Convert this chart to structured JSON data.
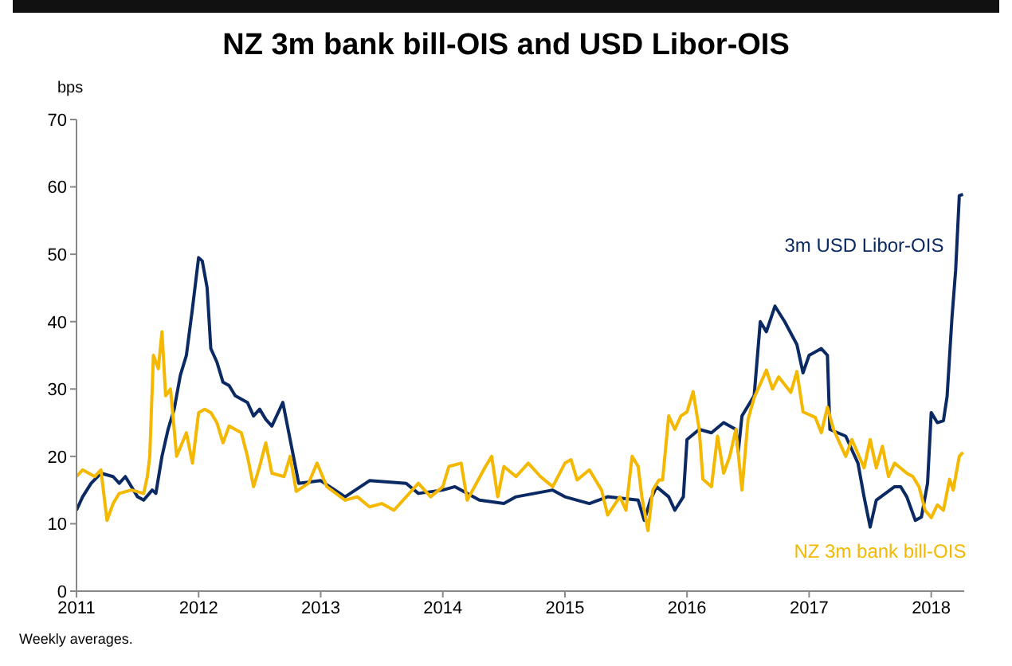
{
  "chart_data": {
    "type": "line",
    "title": "NZ 3m bank bill-OIS and USD Libor-OIS",
    "ylabel": "bps",
    "annotations": [
      "Weekly averages."
    ],
    "xlim": [
      2011,
      2018.27
    ],
    "xticks": [
      2011,
      2012,
      2013,
      2014,
      2015,
      2016,
      2017,
      2018
    ],
    "ylim": [
      0,
      70
    ],
    "yticks": [
      0,
      10,
      20,
      30,
      40,
      50,
      60,
      70
    ],
    "grid": false,
    "legend": false,
    "marker": "none",
    "line_style": "solid",
    "series": [
      {
        "name": "3m USD Libor-OIS",
        "color": "#0b2a63",
        "x": [
          2011.0,
          2011.05,
          2011.12,
          2011.2,
          2011.3,
          2011.35,
          2011.4,
          2011.5,
          2011.55,
          2011.62,
          2011.65,
          2011.7,
          2011.75,
          2011.8,
          2011.85,
          2011.9,
          2011.95,
          2012.0,
          2012.03,
          2012.07,
          2012.1,
          2012.15,
          2012.2,
          2012.25,
          2012.3,
          2012.4,
          2012.45,
          2012.5,
          2012.55,
          2012.6,
          2012.69,
          2012.82,
          2013.0,
          2013.2,
          2013.4,
          2013.7,
          2013.8,
          2014.0,
          2014.1,
          2014.3,
          2014.5,
          2014.6,
          2014.9,
          2015.0,
          2015.2,
          2015.35,
          2015.6,
          2015.65,
          2015.7,
          2015.75,
          2015.85,
          2015.9,
          2015.97,
          2016.0,
          2016.1,
          2016.2,
          2016.3,
          2016.4,
          2016.42,
          2016.45,
          2016.55,
          2016.6,
          2016.65,
          2016.72,
          2016.8,
          2016.9,
          2016.95,
          2017.0,
          2017.1,
          2017.15,
          2017.17,
          2017.3,
          2017.4,
          2017.45,
          2017.5,
          2017.55,
          2017.7,
          2017.75,
          2017.8,
          2017.87,
          2017.92,
          2017.97,
          2018.0,
          2018.05,
          2018.1,
          2018.13,
          2018.17,
          2018.2,
          2018.23,
          2018.26
        ],
        "values": [
          12,
          14,
          16,
          17.5,
          17,
          16,
          17,
          14,
          13.5,
          15,
          14.5,
          20,
          24,
          27,
          32,
          35,
          42,
          49.5,
          49,
          45,
          36,
          34,
          31,
          30.5,
          29,
          28,
          26,
          27,
          25.5,
          24.5,
          28,
          16,
          16.4,
          14,
          16.4,
          16,
          14.5,
          15,
          15.5,
          13.5,
          13,
          14,
          15,
          14,
          13,
          14,
          13.5,
          10.5,
          13.5,
          15.5,
          14,
          12,
          14,
          22.5,
          24,
          23.5,
          25,
          24,
          20.7,
          26,
          29,
          40,
          38.5,
          42.3,
          40,
          36.6,
          32.4,
          35,
          36,
          35,
          24,
          23,
          19,
          14,
          9.5,
          13.5,
          15.5,
          15.5,
          14,
          10.5,
          11,
          16,
          26.5,
          25,
          25.3,
          28.9,
          40.6,
          47.6,
          58.7,
          58.9
        ]
      },
      {
        "name": "NZ 3m bank bill-OIS",
        "color": "#f5b800",
        "x": [
          2011.0,
          2011.05,
          2011.1,
          2011.15,
          2011.2,
          2011.22,
          2011.25,
          2011.3,
          2011.35,
          2011.45,
          2011.55,
          2011.58,
          2011.6,
          2011.63,
          2011.67,
          2011.7,
          2011.73,
          2011.77,
          2011.82,
          2011.9,
          2011.95,
          2012.0,
          2012.05,
          2012.1,
          2012.15,
          2012.2,
          2012.25,
          2012.35,
          2012.4,
          2012.45,
          2012.5,
          2012.55,
          2012.6,
          2012.7,
          2012.75,
          2012.8,
          2012.9,
          2012.97,
          2013.05,
          2013.2,
          2013.3,
          2013.4,
          2013.5,
          2013.6,
          2013.7,
          2013.8,
          2013.9,
          2014.0,
          2014.05,
          2014.15,
          2014.2,
          2014.35,
          2014.4,
          2014.45,
          2014.5,
          2014.6,
          2014.7,
          2014.8,
          2014.9,
          2015.0,
          2015.05,
          2015.1,
          2015.2,
          2015.3,
          2015.35,
          2015.45,
          2015.5,
          2015.55,
          2015.6,
          2015.63,
          2015.68,
          2015.72,
          2015.77,
          2015.8,
          2015.85,
          2015.9,
          2015.95,
          2016.0,
          2016.05,
          2016.1,
          2016.13,
          2016.2,
          2016.25,
          2016.3,
          2016.35,
          2016.4,
          2016.45,
          2016.5,
          2016.55,
          2016.65,
          2016.7,
          2016.75,
          2016.85,
          2016.9,
          2016.95,
          2017.05,
          2017.1,
          2017.15,
          2017.2,
          2017.3,
          2017.35,
          2017.45,
          2017.5,
          2017.55,
          2017.6,
          2017.65,
          2017.7,
          2017.8,
          2017.85,
          2017.9,
          2017.95,
          2018.0,
          2018.05,
          2018.1,
          2018.15,
          2018.18,
          2018.23,
          2018.26
        ],
        "values": [
          17,
          18,
          17.5,
          17,
          18,
          15,
          10.5,
          13,
          14.5,
          15,
          14.5,
          17,
          20,
          35,
          33,
          38.5,
          29,
          30,
          20,
          23.5,
          19,
          26.5,
          27,
          26.5,
          25,
          22,
          24.5,
          23.5,
          20,
          15.5,
          18.5,
          22,
          17.5,
          17,
          20,
          14.8,
          16,
          19,
          15.5,
          13.5,
          14,
          12.5,
          13,
          12,
          14,
          16,
          14,
          15.5,
          18.5,
          19,
          13.5,
          18.5,
          20,
          14,
          18.5,
          17,
          19,
          17,
          15.5,
          19,
          19.5,
          16.5,
          18,
          15,
          11.3,
          14,
          12,
          20,
          18.5,
          14,
          9,
          15,
          16.5,
          16.5,
          26,
          24,
          26,
          26.6,
          29.6,
          24,
          16.6,
          15.5,
          23,
          17.5,
          20,
          24,
          15,
          25.5,
          28.7,
          32.8,
          30,
          31.8,
          29.5,
          32.6,
          26.6,
          25.8,
          23.5,
          27.3,
          24,
          20,
          22.5,
          18.3,
          22.5,
          18.3,
          21.5,
          17,
          19,
          17.5,
          17,
          15.5,
          12,
          10.9,
          12.8,
          12,
          16.6,
          15,
          20,
          20.6
        ]
      }
    ]
  }
}
